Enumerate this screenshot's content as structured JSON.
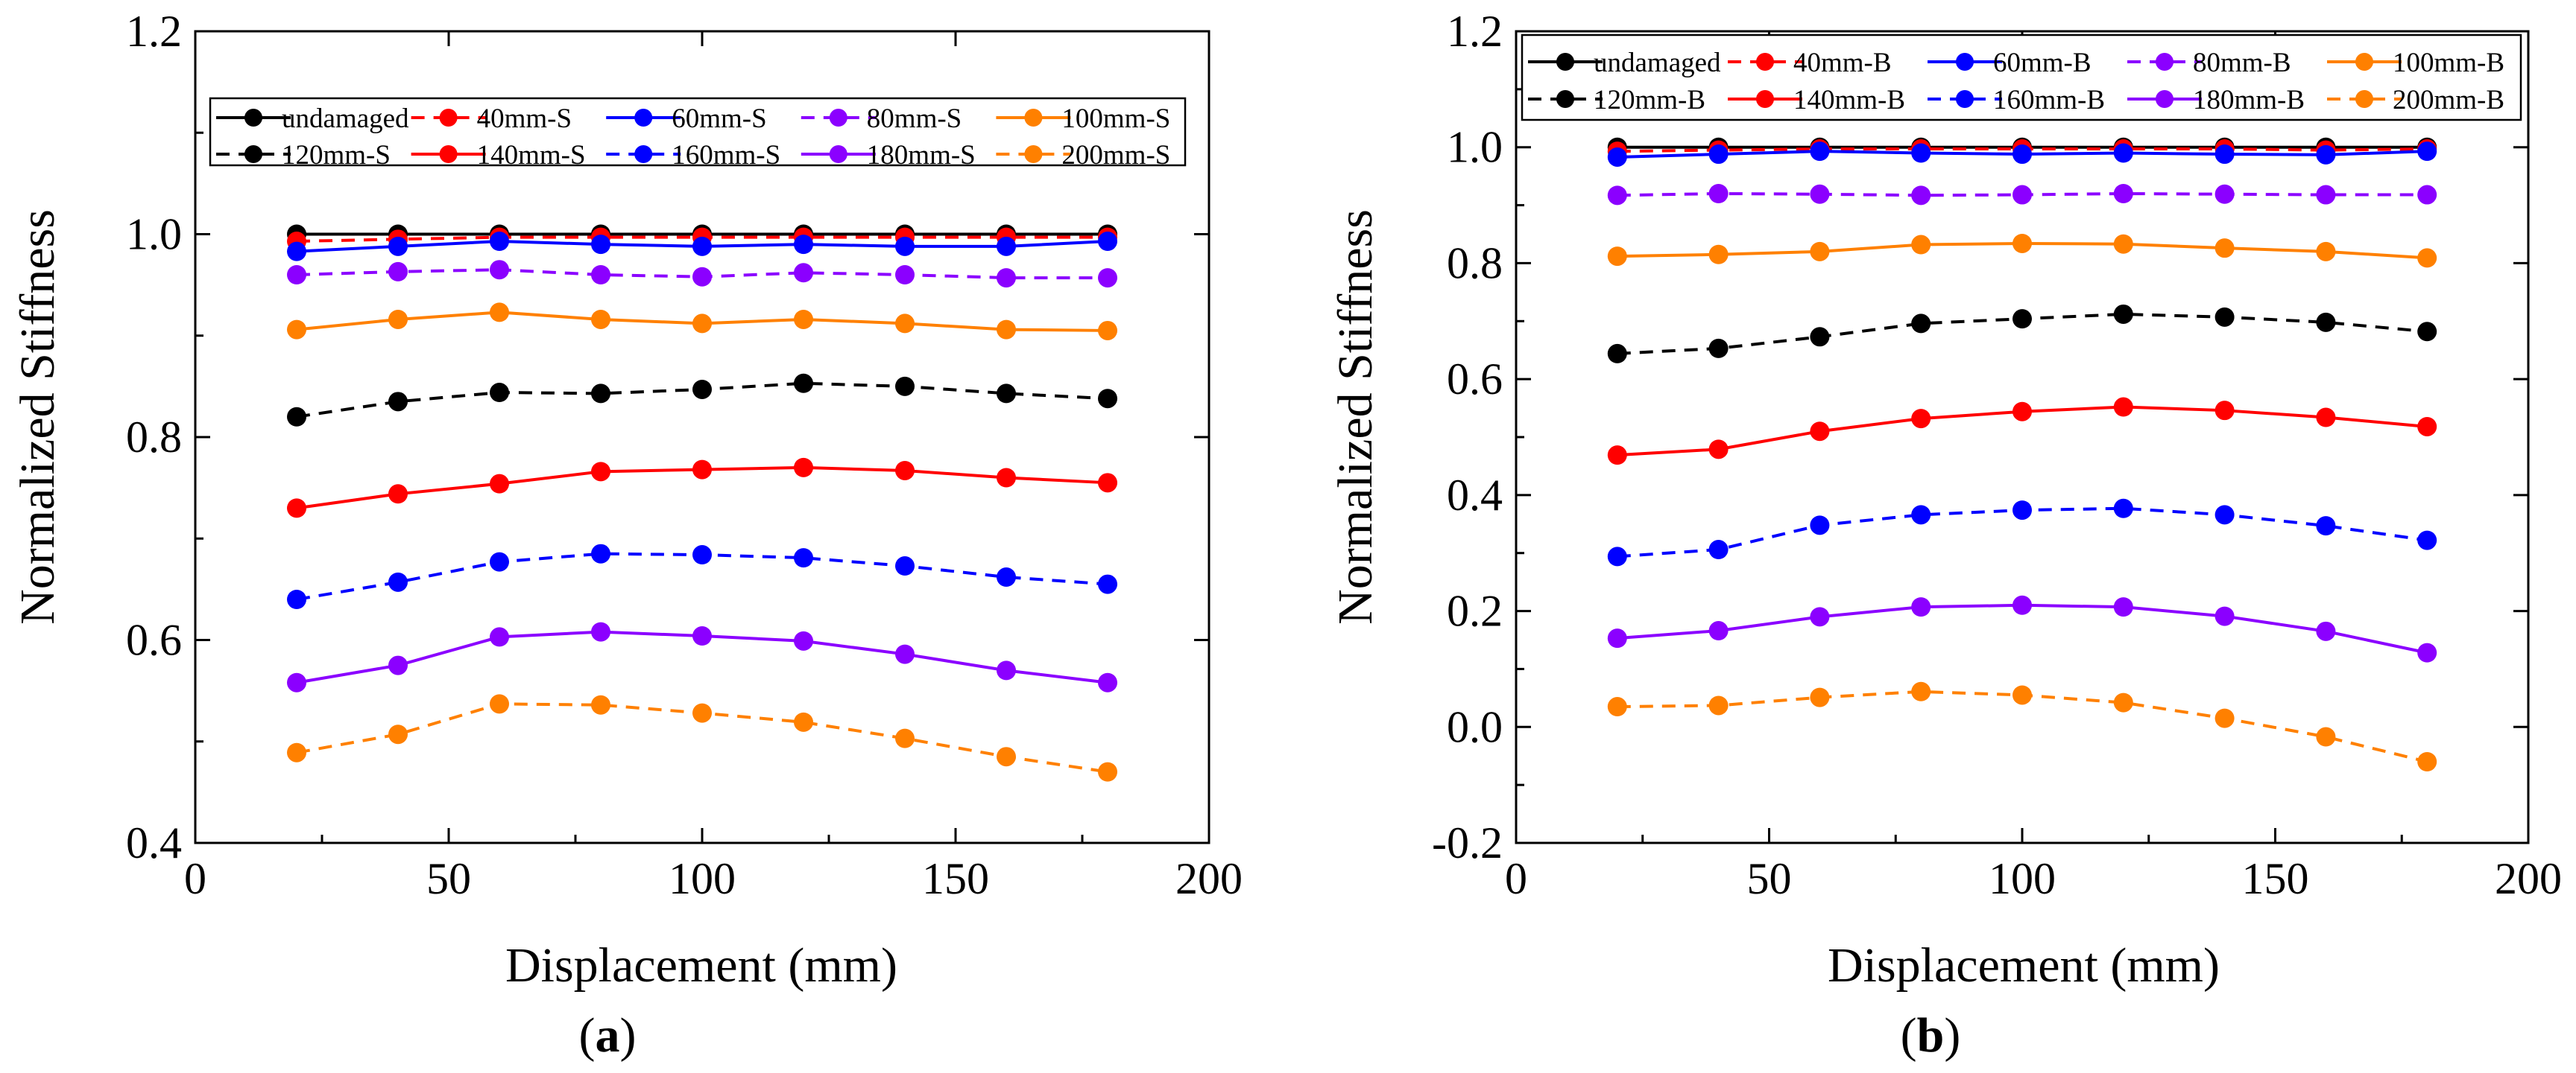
{
  "chart_data": [
    {
      "type": "line",
      "panel": "a",
      "title": "",
      "xlabel": "Displacement (mm)",
      "ylabel": "Normalized Stiffness",
      "xlim": [
        0,
        200
      ],
      "ylim": [
        0.4,
        1.2
      ],
      "xticks": [
        0,
        50,
        100,
        150,
        200
      ],
      "yticks": [
        0.4,
        0.6,
        0.8,
        1.0,
        1.2
      ],
      "xtick_labels": [
        "0",
        "50",
        "100",
        "150",
        "200"
      ],
      "ytick_labels": [
        "0.4",
        "0.6",
        "0.8",
        "1.0",
        "1.2"
      ],
      "grid": false,
      "legend_position": "top-left",
      "x": [
        20,
        40,
        60,
        80,
        100,
        120,
        140,
        160,
        180
      ],
      "series": [
        {
          "name": "undamaged",
          "color": "#000000",
          "dash": "solid",
          "values": [
            1.0,
            1.0,
            1.0,
            1.0,
            1.0,
            1.0,
            1.0,
            1.0,
            1.0
          ]
        },
        {
          "name": "40mm-S",
          "color": "#ff0000",
          "dash": "dashed",
          "values": [
            0.993,
            0.995,
            0.997,
            0.997,
            0.997,
            0.997,
            0.997,
            0.997,
            0.997
          ]
        },
        {
          "name": "60mm-S",
          "color": "#0000ff",
          "dash": "solid",
          "values": [
            0.983,
            0.988,
            0.993,
            0.99,
            0.988,
            0.99,
            0.988,
            0.988,
            0.993
          ]
        },
        {
          "name": "80mm-S",
          "color": "#8b00ff",
          "dash": "dashed",
          "values": [
            0.96,
            0.963,
            0.965,
            0.96,
            0.958,
            0.962,
            0.96,
            0.957,
            0.957
          ]
        },
        {
          "name": "100mm-S",
          "color": "#ff8000",
          "dash": "solid",
          "values": [
            0.906,
            0.916,
            0.923,
            0.916,
            0.912,
            0.916,
            0.912,
            0.906,
            0.905
          ]
        },
        {
          "name": "120mm-S",
          "color": "#000000",
          "dash": "dashed",
          "values": [
            0.82,
            0.835,
            0.844,
            0.843,
            0.847,
            0.853,
            0.85,
            0.843,
            0.838
          ]
        },
        {
          "name": "140mm-S",
          "color": "#ff0000",
          "dash": "solid",
          "values": [
            0.73,
            0.744,
            0.754,
            0.766,
            0.768,
            0.77,
            0.767,
            0.76,
            0.755
          ]
        },
        {
          "name": "160mm-S",
          "color": "#0000ff",
          "dash": "dashed",
          "values": [
            0.64,
            0.657,
            0.677,
            0.685,
            0.684,
            0.681,
            0.673,
            0.662,
            0.655
          ]
        },
        {
          "name": "180mm-S",
          "color": "#8b00ff",
          "dash": "solid",
          "values": [
            0.558,
            0.575,
            0.603,
            0.608,
            0.604,
            0.599,
            0.586,
            0.57,
            0.558
          ]
        },
        {
          "name": "200mm-S",
          "color": "#ff8000",
          "dash": "dashed",
          "values": [
            0.489,
            0.507,
            0.537,
            0.536,
            0.528,
            0.519,
            0.503,
            0.485,
            0.47
          ]
        }
      ],
      "caption": "(a)",
      "caption_bold": "a"
    },
    {
      "type": "line",
      "panel": "b",
      "title": "",
      "xlabel": "Displacement (mm)",
      "ylabel": "Normalized Stiffness",
      "xlim": [
        0,
        200
      ],
      "ylim": [
        -0.2,
        1.2
      ],
      "xticks": [
        0,
        50,
        100,
        150,
        200
      ],
      "yticks": [
        -0.2,
        0.0,
        0.2,
        0.4,
        0.6,
        0.8,
        1.0,
        1.2
      ],
      "xtick_labels": [
        "0",
        "50",
        "100",
        "150",
        "200"
      ],
      "ytick_labels": [
        "-0.2",
        "0.0",
        "0.2",
        "0.4",
        "0.6",
        "0.8",
        "1.0",
        "1.2"
      ],
      "grid": false,
      "legend_position": "top-left",
      "x": [
        20,
        40,
        60,
        80,
        100,
        120,
        140,
        160,
        180
      ],
      "series": [
        {
          "name": "undamaged",
          "color": "#000000",
          "dash": "solid",
          "values": [
            1.0,
            1.0,
            1.0,
            1.0,
            1.0,
            1.0,
            1.0,
            1.0,
            1.0
          ]
        },
        {
          "name": "40mm-B",
          "color": "#ff0000",
          "dash": "dashed",
          "values": [
            0.993,
            0.995,
            0.997,
            0.997,
            0.997,
            0.997,
            0.997,
            0.995,
            0.997
          ]
        },
        {
          "name": "60mm-B",
          "color": "#0000ff",
          "dash": "solid",
          "values": [
            0.983,
            0.988,
            0.993,
            0.99,
            0.988,
            0.99,
            0.988,
            0.987,
            0.993
          ]
        },
        {
          "name": "80mm-B",
          "color": "#8b00ff",
          "dash": "dashed",
          "values": [
            0.917,
            0.92,
            0.919,
            0.917,
            0.918,
            0.92,
            0.919,
            0.918,
            0.918
          ]
        },
        {
          "name": "100mm-B",
          "color": "#ff8000",
          "dash": "solid",
          "values": [
            0.812,
            0.815,
            0.82,
            0.832,
            0.834,
            0.833,
            0.826,
            0.82,
            0.809
          ]
        },
        {
          "name": "120mm-B",
          "color": "#000000",
          "dash": "dashed",
          "values": [
            0.644,
            0.653,
            0.673,
            0.696,
            0.704,
            0.712,
            0.707,
            0.698,
            0.682
          ]
        },
        {
          "name": "140mm-B",
          "color": "#ff0000",
          "dash": "solid",
          "values": [
            0.469,
            0.479,
            0.51,
            0.532,
            0.544,
            0.552,
            0.546,
            0.534,
            0.518
          ]
        },
        {
          "name": "160mm-B",
          "color": "#0000ff",
          "dash": "dashed",
          "values": [
            0.294,
            0.306,
            0.348,
            0.366,
            0.374,
            0.377,
            0.366,
            0.347,
            0.322
          ]
        },
        {
          "name": "180mm-B",
          "color": "#8b00ff",
          "dash": "solid",
          "values": [
            0.153,
            0.166,
            0.19,
            0.207,
            0.21,
            0.207,
            0.191,
            0.165,
            0.128
          ]
        },
        {
          "name": "200mm-B",
          "color": "#ff8000",
          "dash": "dashed",
          "values": [
            0.035,
            0.037,
            0.051,
            0.061,
            0.055,
            0.042,
            0.015,
            -0.017,
            -0.06
          ]
        }
      ],
      "caption": "(b)",
      "caption_bold": "b"
    }
  ]
}
